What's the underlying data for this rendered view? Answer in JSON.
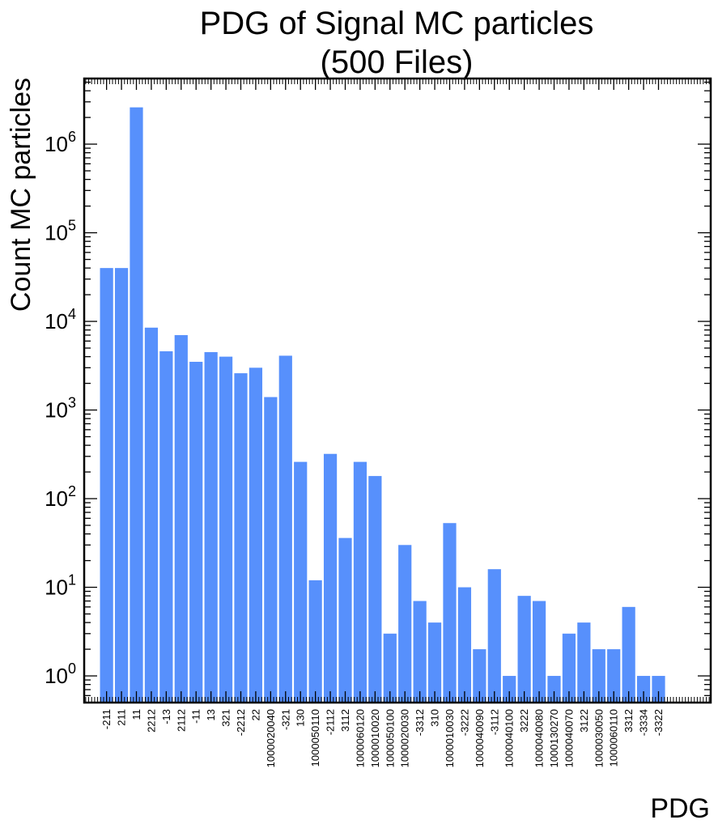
{
  "chart_data": {
    "type": "bar",
    "title": "PDG of Signal MC particles",
    "subtitle": "(500 Files)",
    "xlabel": "PDG",
    "ylabel": "Count MC particles",
    "yscale": "log",
    "ylim": [
      0.5,
      5500000
    ],
    "grid": false,
    "bar_color": "#5790fc",
    "ytick_base": "10",
    "ytick_exponents": [
      "0",
      "1",
      "2",
      "3",
      "4",
      "5",
      "6"
    ],
    "categories": [
      "-211",
      "211",
      "11",
      "2212",
      "-13",
      "2112",
      "-11",
      "13",
      "321",
      "-2212",
      "22",
      "1000020040",
      "-321",
      "130",
      "1000050110",
      "-2112",
      "3112",
      "1000060120",
      "1000010020",
      "1000050100",
      "1000020030",
      "-3312",
      "310",
      "1000010030",
      "-3222",
      "1000040090",
      "-3112",
      "1000040100",
      "3222",
      "1000040080",
      "1000130270",
      "1000040070",
      "3122",
      "1000030050",
      "1000060110",
      "3312",
      "-3334",
      "-3322"
    ],
    "values": [
      40000,
      40000,
      2600000,
      8500,
      4600,
      7000,
      3500,
      4500,
      4000,
      2600,
      3000,
      1400,
      4100,
      260,
      12,
      320,
      36,
      260,
      180,
      3,
      30,
      7,
      4,
      53,
      10,
      2,
      16,
      1,
      8,
      7,
      1,
      3,
      4,
      2,
      2,
      6,
      1,
      1
    ]
  }
}
